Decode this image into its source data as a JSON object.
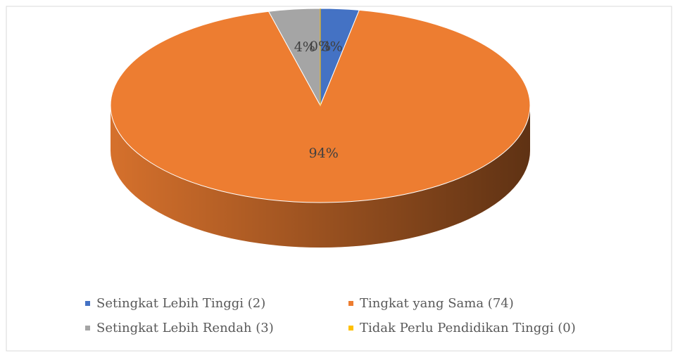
{
  "chart_data": {
    "type": "pie",
    "categories": [
      "Setingkat Lebih Tinggi (2)",
      "Tingkat yang Sama (74)",
      "Setingkat Lebih Rendah (3)",
      "Tidak Perlu Pendidikan Tinggi (0)"
    ],
    "values": [
      3,
      94,
      4,
      0
    ],
    "value_labels": [
      "3%",
      "94%",
      "4%",
      "0%"
    ],
    "colors": [
      "#4472c4",
      "#ed7d31",
      "#a5a5a5",
      "#ffc000"
    ],
    "legend": "bottom"
  }
}
